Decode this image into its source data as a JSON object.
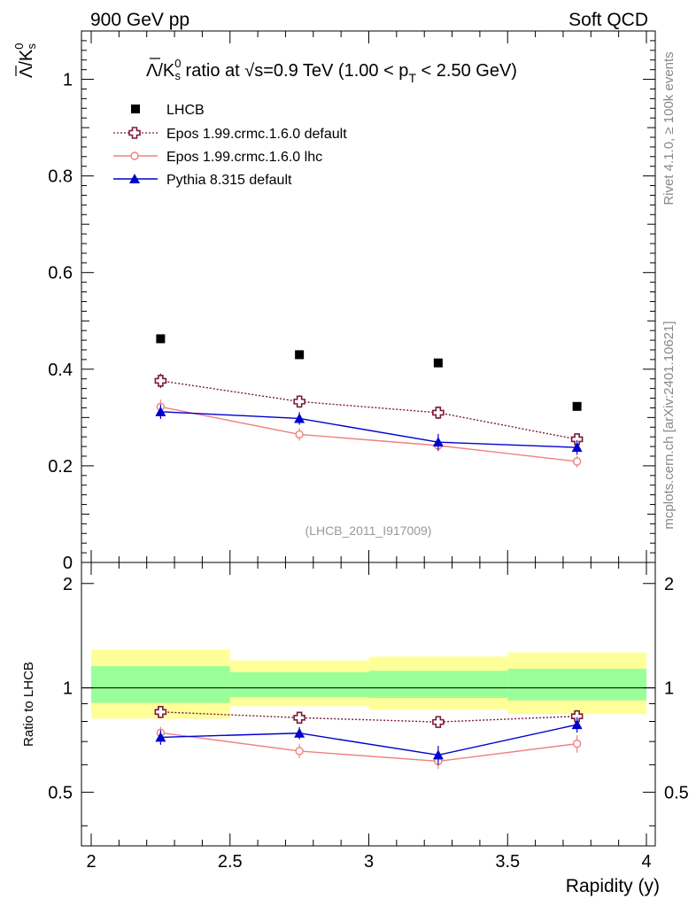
{
  "header": {
    "left_label": "900 GeV pp",
    "right_label": "Soft QCD"
  },
  "side_labels": {
    "rivet": "Rivet 4.1.0, ≥ 100k events",
    "mcplots": "mcplots.cern.ch [arXiv:2401.10621]"
  },
  "analysis_id": "(LHCB_2011_I917009)",
  "colors": {
    "lhcb": "#000000",
    "epos_default": "#7a1a3a",
    "epos_lhc": "#f08080",
    "pythia": "#0000cc",
    "band_yellow": "#ffff99",
    "band_green": "#99ff99"
  },
  "chart_data": [
    {
      "type": "scatter",
      "panel": "main",
      "title_parts": {
        "pre": "Λ/K",
        "sup": "0",
        "sub": "s",
        "mid": " ratio at √s=0.9 TeV (1.00 < p",
        "sub2": "T",
        "post": " < 2.50 GeV)"
      },
      "ylabel_parts": {
        "main": "Λ/K",
        "sup": "0",
        "sub": "s"
      },
      "xlabel": "",
      "xlim": [
        2,
        4
      ],
      "ylim": [
        0,
        1.1
      ],
      "yticks": [
        0,
        0.2,
        0.4,
        0.6,
        0.8,
        1
      ],
      "ytick_labels": [
        "0",
        "0.2",
        "0.4",
        "0.6",
        "0.8",
        "1"
      ],
      "x": [
        2.25,
        2.75,
        3.25,
        3.75
      ],
      "series": [
        {
          "name": "LHCB",
          "key": "lhcb",
          "values": [
            0.463,
            0.43,
            0.413,
            0.323
          ],
          "errors": [
            0.0,
            0.0,
            0.0,
            0.0
          ],
          "marker": "square",
          "line": "none"
        },
        {
          "name": "Epos 1.99.crmc.1.6.0 default",
          "key": "epos_default",
          "values": [
            0.376,
            0.333,
            0.31,
            0.255
          ],
          "errors": [
            0.015,
            0.013,
            0.013,
            0.012
          ],
          "marker": "open-cross",
          "line": "dotted"
        },
        {
          "name": "Epos 1.99.crmc.1.6.0 lhc",
          "key": "epos_lhc",
          "values": [
            0.322,
            0.265,
            0.242,
            0.209
          ],
          "errors": [
            0.015,
            0.013,
            0.012,
            0.012
          ],
          "marker": "open-circle",
          "line": "solid"
        },
        {
          "name": "Pythia 8.315 default",
          "key": "pythia",
          "values": [
            0.312,
            0.298,
            0.249,
            0.238
          ],
          "errors": [
            0.015,
            0.013,
            0.017,
            0.015
          ],
          "marker": "triangle",
          "line": "solid"
        }
      ],
      "legend_position": "top-left"
    },
    {
      "type": "scatter",
      "panel": "ratio",
      "xlabel": "Rapidity (y)",
      "ylabel": "Ratio to LHCB",
      "xlim": [
        2,
        4
      ],
      "ylim": [
        0.35,
        2.3
      ],
      "xticks": [
        2,
        2.5,
        3,
        3.5,
        4
      ],
      "xtick_labels": [
        "2",
        "2.5",
        "3",
        "3.5",
        "4"
      ],
      "yticks": [
        0.5,
        1,
        2
      ],
      "ytick_labels": [
        "0.5",
        "1",
        "2"
      ],
      "reference_line": 1,
      "bins": [
        [
          2.0,
          2.5
        ],
        [
          2.5,
          3.0
        ],
        [
          3.0,
          3.5
        ],
        [
          3.5,
          4.0
        ]
      ],
      "band_yellow": [
        [
          0.815,
          1.29
        ],
        [
          0.885,
          1.2
        ],
        [
          0.865,
          1.23
        ],
        [
          0.84,
          1.265
        ]
      ],
      "band_green": [
        [
          0.905,
          1.155
        ],
        [
          0.94,
          1.11
        ],
        [
          0.935,
          1.12
        ],
        [
          0.92,
          1.135
        ]
      ],
      "x": [
        2.25,
        2.75,
        3.25,
        3.75
      ],
      "series": [
        {
          "name": "Epos 1.99.crmc.1.6.0 default",
          "key": "epos_default",
          "values": [
            0.852,
            0.82,
            0.797,
            0.828
          ],
          "errors": [
            0.025,
            0.025,
            0.03,
            0.035
          ],
          "marker": "open-cross",
          "line": "dotted"
        },
        {
          "name": "Epos 1.99.crmc.1.6.0 lhc",
          "key": "epos_lhc",
          "values": [
            0.742,
            0.657,
            0.614,
            0.69
          ],
          "errors": [
            0.03,
            0.03,
            0.03,
            0.04
          ],
          "marker": "open-circle",
          "line": "solid"
        },
        {
          "name": "Pythia 8.315 default",
          "key": "pythia",
          "values": [
            0.72,
            0.74,
            0.64,
            0.783
          ],
          "errors": [
            0.035,
            0.03,
            0.04,
            0.04
          ],
          "marker": "triangle",
          "line": "solid"
        }
      ]
    }
  ]
}
